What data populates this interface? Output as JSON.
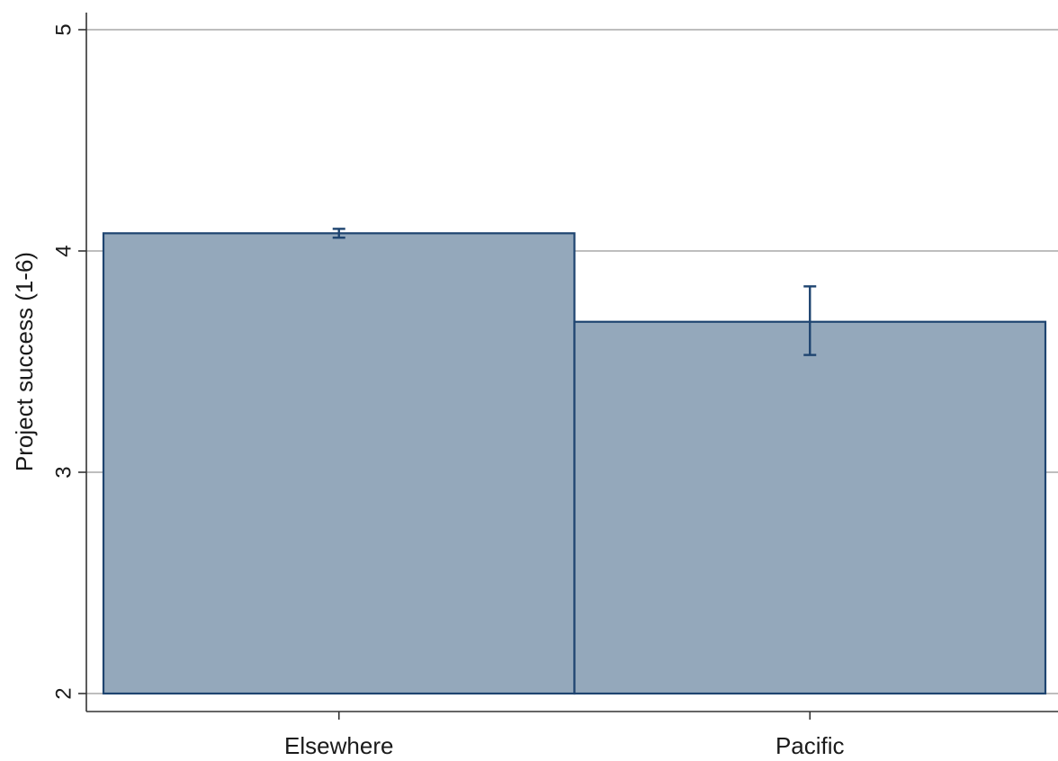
{
  "chart_data": {
    "type": "bar",
    "title": "",
    "xlabel": "",
    "ylabel": "Project success (1-6)",
    "ylim": [
      2,
      5
    ],
    "yticks": [
      2,
      3,
      4,
      5
    ],
    "grid": true,
    "categories": [
      "Elsewhere",
      "Pacific"
    ],
    "values": [
      4.08,
      3.68
    ],
    "error_bars": [
      {
        "low": 4.06,
        "high": 4.1
      },
      {
        "low": 3.53,
        "high": 3.84
      }
    ]
  },
  "colors": {
    "bar_fill": "#94a8bb",
    "bar_stroke": "#1e4470",
    "error_bar": "#1e4470",
    "grid": "#a9a9a9",
    "axis": "#333333"
  }
}
